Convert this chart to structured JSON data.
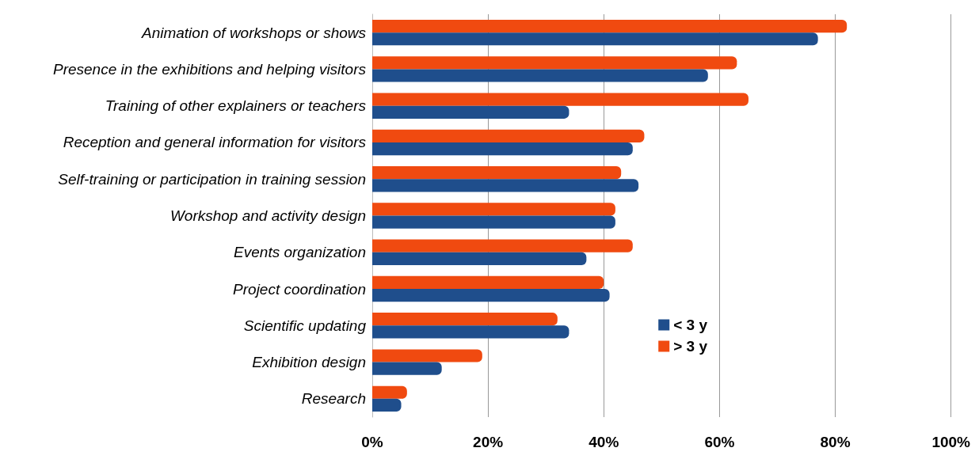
{
  "chart_data": {
    "type": "bar",
    "orientation": "horizontal",
    "categories": [
      "Animation of workshops or shows",
      "Presence in the exhibitions and helping visitors",
      "Training of other explainers or teachers",
      "Reception and general information for visitors",
      "Self-training or participation in training session",
      "Workshop and activity design",
      "Events organization",
      "Project coordination",
      "Scientific updating",
      "Exhibition design",
      "Research"
    ],
    "series": [
      {
        "name": "< 3 y",
        "color": "#1f4e8c",
        "values": [
          77,
          58,
          34,
          45,
          46,
          42,
          37,
          41,
          34,
          12,
          5
        ]
      },
      {
        "name": "> 3 y",
        "color": "#f04a10",
        "values": [
          82,
          63,
          65,
          47,
          43,
          42,
          45,
          40,
          32,
          19,
          6
        ]
      }
    ],
    "xlim": [
      0,
      100
    ],
    "xticks": [
      {
        "value": 0,
        "label": "0%"
      },
      {
        "value": 20,
        "label": "20%"
      },
      {
        "value": 40,
        "label": "40%"
      },
      {
        "value": 60,
        "label": "60%"
      },
      {
        "value": 80,
        "label": "80%"
      },
      {
        "value": 100,
        "label": "100%"
      }
    ],
    "grid": "x",
    "legend": "right"
  }
}
